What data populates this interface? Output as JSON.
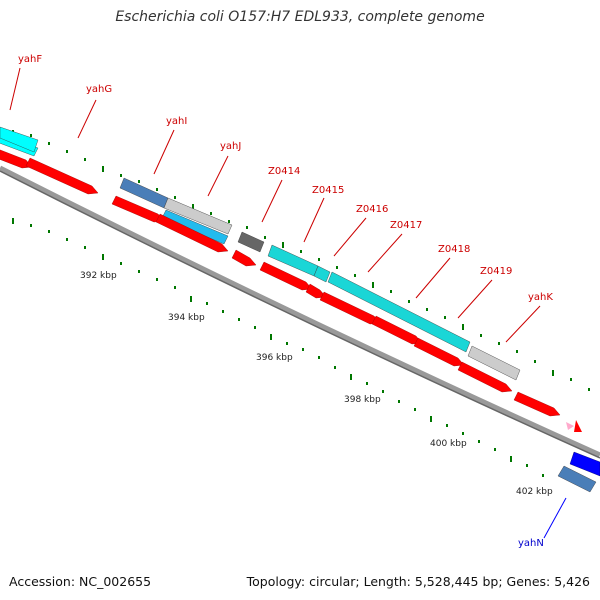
{
  "title": "Escherichia coli O157:H7 EDL933, complete genome",
  "footer": {
    "accession": "Accession: NC_002655",
    "topology": "Topology: circular; Length: 5,528,445 bp; Genes: 5,426"
  },
  "colors": {
    "forward_cds": "#ff0000",
    "cyan": "#00ffff",
    "teal": "#1ad6d6",
    "steel_blue": "#4a7eb8",
    "sky_blue": "#22bbee",
    "light_gray": "#cccccc",
    "dark_gray": "#666666",
    "blue": "#0000ff",
    "pink": "#ffaacc",
    "backbone": "#888888",
    "tick_green": "#007700"
  },
  "gene_labels": [
    "yahF",
    "yahG",
    "yahI",
    "yahJ",
    "Z0414",
    "Z0415",
    "Z0416",
    "Z0417",
    "Z0418",
    "Z0419",
    "yahK",
    "yahN"
  ],
  "kbp_labels": [
    "392 kbp",
    "394 kbp",
    "396 kbp",
    "398 kbp",
    "400 kbp",
    "402 kbp"
  ]
}
